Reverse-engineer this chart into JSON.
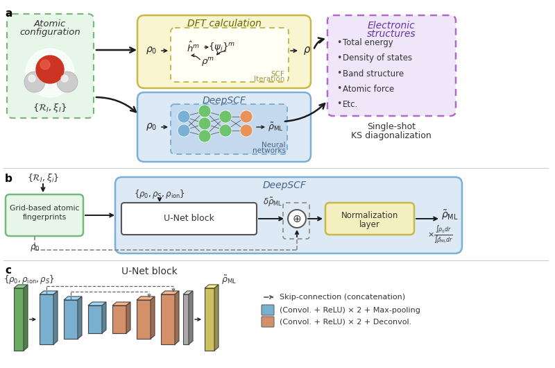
{
  "bg_color": "#ffffff",
  "panel_a": {
    "label": "a",
    "elec_items": [
      "Total energy",
      "Density of states",
      "Band structure",
      "Atomic force",
      "Etc."
    ]
  },
  "panel_b": {
    "label": "b"
  },
  "panel_c": {
    "label": "c"
  },
  "colors": {
    "green_fill": "#e8f5e9",
    "green_border": "#78b87a",
    "yellow_fill": "#f9f5d0",
    "yellow_border": "#c8b84a",
    "blue_fill": "#dde9f5",
    "blue_border": "#7ab0d4",
    "blue_nn_fill": "#c5d9ee",
    "purple_fill": "#f0e6fa",
    "purple_border": "#b06ac8",
    "norm_fill": "#f5f0c0",
    "node_green": "#6dc46d",
    "node_blue": "#7ab0d4",
    "node_orange": "#e8935a",
    "arrow": "#222222",
    "unet_blue": "#7ab0cf",
    "unet_orange": "#d4906a",
    "unet_green": "#6aaa64",
    "unet_yellow": "#ccc060"
  }
}
